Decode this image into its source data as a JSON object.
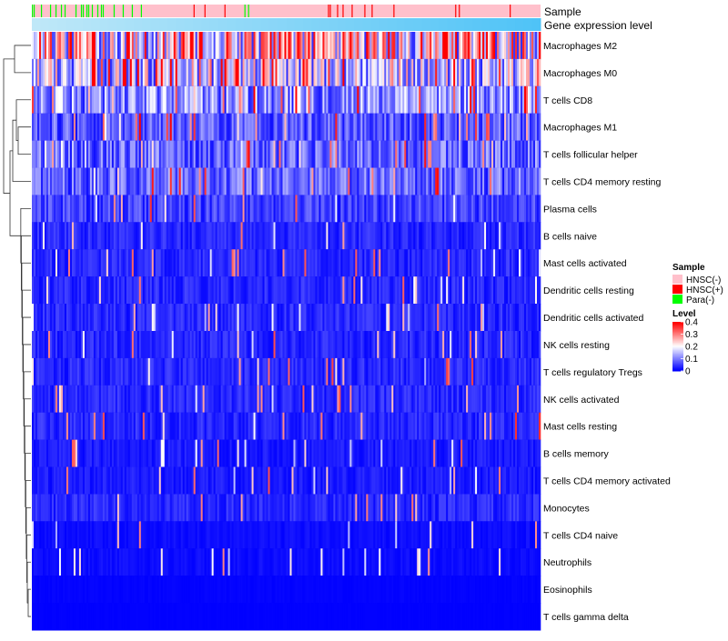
{
  "chart_data": {
    "type": "heatmap",
    "title": "",
    "annotations": [
      {
        "label": "Sample"
      },
      {
        "label": "Gene expression level"
      }
    ],
    "rows": [
      {
        "label": "Macrophages M2",
        "mean": 0.22
      },
      {
        "label": "Macrophages M0",
        "mean": 0.16
      },
      {
        "label": "T cells CD8",
        "mean": 0.11
      },
      {
        "label": "Macrophages M1",
        "mean": 0.07
      },
      {
        "label": "T cells follicular helper",
        "mean": 0.08
      },
      {
        "label": "T cells CD4 memory resting",
        "mean": 0.08
      },
      {
        "label": "Plasma cells",
        "mean": 0.05
      },
      {
        "label": "B cells naive",
        "mean": 0.03
      },
      {
        "label": "Mast cells activated",
        "mean": 0.03
      },
      {
        "label": "Dendritic cells resting",
        "mean": 0.03
      },
      {
        "label": "Dendritic cells activated",
        "mean": 0.03
      },
      {
        "label": "NK cells resting",
        "mean": 0.03
      },
      {
        "label": "T cells regulatory  Tregs",
        "mean": 0.03
      },
      {
        "label": "NK cells activated",
        "mean": 0.03
      },
      {
        "label": "Mast cells resting",
        "mean": 0.03
      },
      {
        "label": "B cells memory",
        "mean": 0.02
      },
      {
        "label": "T cells CD4 memory activated",
        "mean": 0.02
      },
      {
        "label": "Monocytes",
        "mean": 0.03
      },
      {
        "label": "T cells CD4 naive",
        "mean": 0.01
      },
      {
        "label": "Neutrophils",
        "mean": 0.01
      },
      {
        "label": "Eosinophils",
        "mean": 0.005
      },
      {
        "label": "T cells gamma delta",
        "mean": 0.002
      }
    ],
    "value_range": [
      0,
      0.4
    ],
    "legend": {
      "sample_title": "Sample",
      "sample_items": [
        {
          "label": "HNSC(-)",
          "color": "#ffc0cb"
        },
        {
          "label": "HNSC(+)",
          "color": "#ff0000"
        },
        {
          "label": "Para(-)",
          "color": "#00ff00"
        }
      ],
      "level_title": "Level",
      "level_ticks": [
        "0.4",
        "0.3",
        "0.2",
        "0.1",
        "0"
      ],
      "level_tick_values": [
        0.4,
        0.3,
        0.2,
        0.1,
        0
      ]
    },
    "colors": {
      "low": "#0000ff",
      "mid": "#ffffff",
      "high": "#ff0000",
      "sample_default": "#ffc0cb",
      "expression_low": "#bfe8f8",
      "expression_high": "#4fc3f7"
    }
  }
}
